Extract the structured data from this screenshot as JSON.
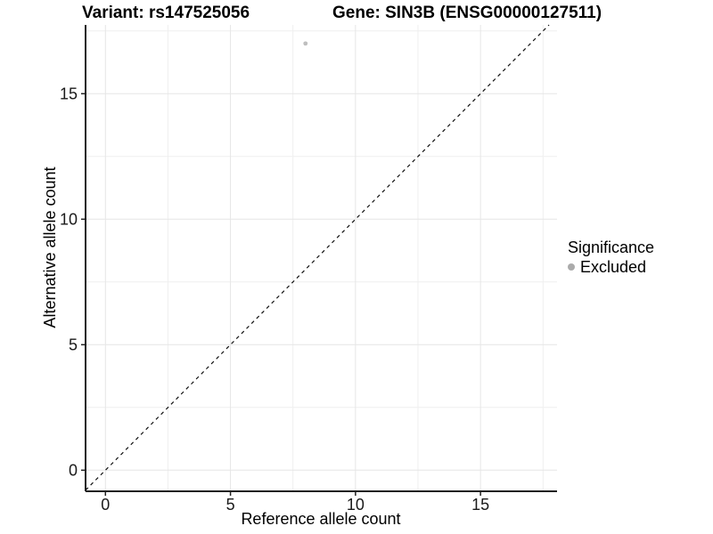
{
  "figure": {
    "title_left": "Variant: rs147525056",
    "title_right": "Gene: SIN3B (ENSG00000127511)"
  },
  "legend": {
    "title": "Significance",
    "position": "right",
    "items": [
      {
        "label": "Excluded",
        "color": "#ababab"
      }
    ]
  },
  "chart_data": {
    "type": "scatter",
    "title": "Variant: rs147525056 / Gene: SIN3B (ENSG00000127511)",
    "xlabel": "Reference allele count",
    "ylabel": "Alternative allele count",
    "xlim": [
      -0.795,
      18.06
    ],
    "ylim": [
      -0.84,
      17.74
    ],
    "xticks": [
      0,
      5,
      10,
      15
    ],
    "yticks": [
      0,
      5,
      10,
      15
    ],
    "minor_ticks_x": [
      2.5,
      7.5,
      12.5,
      17.5
    ],
    "minor_ticks_y": [
      2.5,
      7.5,
      12.5,
      17.5
    ],
    "grid": "major-and-minor",
    "legend_position": "right",
    "series": [
      {
        "name": "Excluded",
        "color": "#bfbfbf",
        "points": [
          {
            "x": 8,
            "y": 17
          }
        ]
      }
    ],
    "abline": {
      "slope": 1,
      "intercept": 0,
      "linetype": "dashed",
      "color": "#111111"
    },
    "colors": {
      "axis_line": "#000000",
      "tick_mark": "#222222",
      "tick_label": "#1a1a1a",
      "grid_major": "#e6e6e6",
      "grid_minor": "#efefef",
      "panel_background": "#ffffff"
    }
  }
}
